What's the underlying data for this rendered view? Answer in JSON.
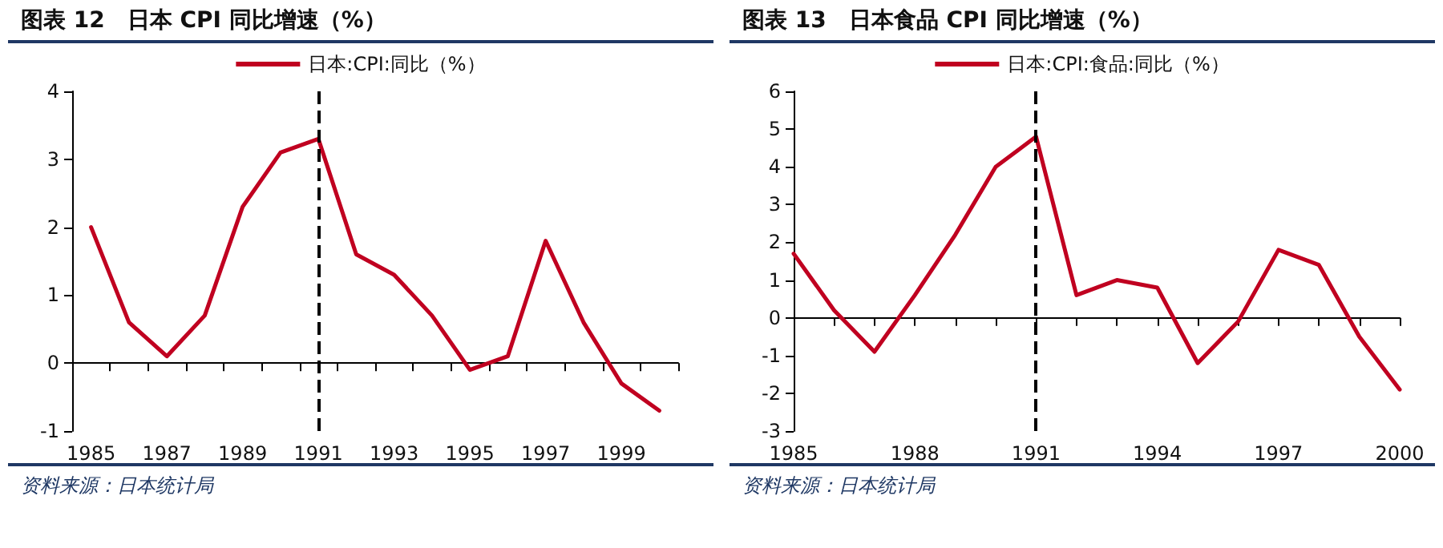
{
  "chart_data": [
    {
      "type": "line",
      "title": "图表 12　日本 CPI 同比增速（%）",
      "categories": [
        "1985",
        null,
        "1987",
        null,
        "1989",
        null,
        "1991",
        null,
        "1993",
        null,
        "1995",
        null,
        "1997",
        null,
        "1999",
        null
      ],
      "series": [
        {
          "name": "日本:CPI:同比（%）",
          "color": "#c00020",
          "values": [
            2.0,
            0.6,
            0.1,
            0.7,
            2.3,
            3.1,
            3.3,
            1.6,
            1.3,
            0.7,
            -0.1,
            0.1,
            1.8,
            0.6,
            -0.3,
            -0.7
          ]
        }
      ],
      "ylim": [
        -1,
        4
      ],
      "yticks": [
        -1,
        0,
        1,
        2,
        3,
        4
      ],
      "ref_lines": [
        {
          "axis": "x",
          "value": "1991",
          "color": "#000000",
          "line_style": "dashed"
        }
      ],
      "legend": "top",
      "grid": false,
      "marker": "none",
      "line_style": "solid",
      "annotations": [
        "资料来源：日本统计局"
      ]
    },
    {
      "type": "line",
      "title": "图表 13　日本食品 CPI 同比增速（%）",
      "categories": [
        "1985",
        null,
        null,
        "1988",
        null,
        null,
        "1991",
        null,
        null,
        "1994",
        null,
        null,
        "1997",
        null,
        null,
        "2000"
      ],
      "series": [
        {
          "name": "日本:CPI:食品:同比（%）",
          "color": "#c00020",
          "values": [
            1.7,
            0.2,
            -0.9,
            0.6,
            2.2,
            4.0,
            4.8,
            0.6,
            1.0,
            0.8,
            -1.2,
            -0.1,
            1.8,
            1.4,
            -0.5,
            -1.9
          ]
        }
      ],
      "ylim": [
        -3,
        6
      ],
      "yticks": [
        -3,
        -2,
        -1,
        0,
        1,
        2,
        3,
        4,
        5,
        6
      ],
      "ref_lines": [
        {
          "axis": "x",
          "value": "1991",
          "color": "#000000",
          "line_style": "dashed"
        }
      ],
      "legend": "top",
      "grid": false,
      "marker": "none",
      "line_style": "solid",
      "annotations": [
        "资料来源：日本统计局"
      ]
    }
  ]
}
